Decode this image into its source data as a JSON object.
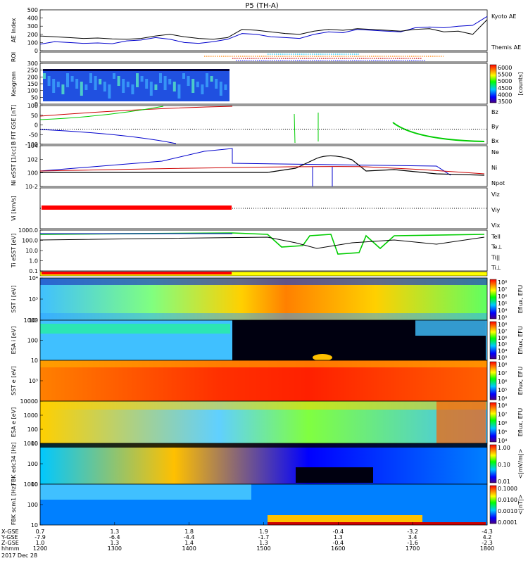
{
  "chart_data": {
    "type": "line",
    "title": "P5 (TH-A)",
    "date": "2017 Dec 28",
    "x_axis": {
      "unit": "hhmm",
      "tick_labels": [
        "1200",
        "1300",
        "1400",
        "1500",
        "1600",
        "1700",
        "1800"
      ],
      "ephemeris_rows": [
        {
          "label": "X-GSE",
          "values": [
            "0.7",
            "1.3",
            "1.8",
            "1.9",
            "-0.4",
            "-3.2",
            "-4.3"
          ]
        },
        {
          "label": "Y-GSE",
          "values": [
            "-7.9",
            "-6.4",
            "-4.4",
            "-1.7",
            "1.3",
            "3.4",
            "4.2"
          ]
        },
        {
          "label": "Z-GSE",
          "values": [
            "1.0",
            "1.3",
            "1.4",
            "1.3",
            "-0.4",
            "-1.6",
            "-2.3"
          ]
        }
      ],
      "hhmm_label": "hhmm"
    },
    "panels": [
      {
        "id": "ae",
        "ylabel": "AE Index",
        "yticks": [
          "0",
          "100",
          "200",
          "300",
          "400",
          "500"
        ],
        "series": [
          {
            "name": "Kyoto AE",
            "color": "#0000cc"
          },
          {
            "name": "Themis AE",
            "color": "#000000"
          }
        ],
        "kyoto_ae": [
          80,
          110,
          100,
          90,
          95,
          85,
          120,
          130,
          160,
          140,
          100,
          90,
          110,
          140,
          210,
          200,
          170,
          160,
          150,
          200,
          230,
          220,
          260,
          250,
          240,
          230,
          280,
          290,
          280,
          300,
          310,
          420
        ],
        "themis_ae": [
          180,
          170,
          160,
          150,
          155,
          145,
          140,
          150,
          180,
          200,
          170,
          150,
          140,
          160,
          260,
          250,
          230,
          210,
          200,
          240,
          260,
          250,
          270,
          260,
          250,
          240,
          260,
          270,
          230,
          240,
          200,
          380
        ]
      },
      {
        "id": "roi",
        "ylabel": "ROI"
      },
      {
        "id": "keogram",
        "ylabel": "Keogram",
        "yticks": [
          "0",
          "50",
          "100",
          "150",
          "200",
          "250",
          "300"
        ],
        "colorbar": {
          "ticks": [
            "3500",
            "4000",
            "4500",
            "5000",
            "5500",
            "6000"
          ],
          "label": "[counts]"
        }
      },
      {
        "id": "bfit",
        "ylabel": "B FIT GSE [nT]",
        "yticks": [
          "-100",
          "-50",
          "0",
          "50",
          "100"
        ],
        "series": [
          {
            "name": "Bz",
            "color": "#cc0000"
          },
          {
            "name": "By",
            "color": "#00cc00"
          },
          {
            "name": "Bx",
            "color": "#0000cc"
          }
        ]
      },
      {
        "id": "ni",
        "ylabel": "Ni eSST [1/cc]",
        "yticks": [
          "10-2",
          "100",
          "102",
          "104"
        ],
        "series": [
          {
            "name": "Ne",
            "color": "#cc0000"
          },
          {
            "name": "Ni",
            "color": "#000000"
          },
          {
            "name": "Npot",
            "color": "#0000cc"
          }
        ]
      },
      {
        "id": "vi",
        "ylabel": "Vi [km/s]",
        "series": [
          {
            "name": "Viz",
            "color": "#cc0000"
          },
          {
            "name": "Viy",
            "color": "#00cc00"
          },
          {
            "name": "Vix",
            "color": "#0000cc"
          }
        ]
      },
      {
        "id": "ti",
        "ylabel": "Ti eSST [eV]",
        "yticks": [
          "0.1",
          "1.0",
          "10.0",
          "100.0",
          "1000.0"
        ],
        "series": [
          {
            "name": "Tell",
            "color": "#000000"
          },
          {
            "name": "Te⊥",
            "color": "#cc0000"
          },
          {
            "name": "Ti||",
            "color": "#00cc00"
          },
          {
            "name": "Ti⊥",
            "color": "#0000cc"
          }
        ]
      },
      {
        "id": "sst_i",
        "ylabel": "SST i [eV]",
        "yticks": [
          "10²",
          "10³",
          "10⁴"
        ],
        "colorbar": {
          "ticks": [
            "10³",
            "10⁴",
            "10⁵",
            "10⁶",
            "10⁷",
            "10⁸"
          ],
          "label": "Eflux, EFU"
        }
      },
      {
        "id": "esa_i",
        "ylabel": "ESA i [eV]",
        "yticks": [
          "10",
          "100",
          "1000"
        ],
        "colorbar": {
          "ticks": [
            "10³",
            "10⁴",
            "10⁵",
            "10⁶",
            "10⁷",
            "10⁸"
          ],
          "label": "Eflux, EFU"
        }
      },
      {
        "id": "sst_e",
        "ylabel": "SST e [eV]",
        "yticks": [
          "10³"
        ],
        "colorbar": {
          "ticks": [
            "10⁴",
            "10⁵",
            "10⁶",
            "10⁷",
            "10⁸"
          ],
          "label": "Eflux, EFU"
        }
      },
      {
        "id": "esa_e",
        "ylabel": "ESA e [eV]",
        "yticks": [
          "10",
          "100",
          "1000",
          "10000"
        ],
        "colorbar": {
          "ticks": [
            "10⁴",
            "10⁵",
            "10⁶",
            "10⁷",
            "10⁸"
          ],
          "label": "Eflux, EFU"
        }
      },
      {
        "id": "fbk_e",
        "ylabel": "FBK edc34 [Hz]",
        "yticks": [
          "10",
          "100",
          "1000"
        ],
        "colorbar": {
          "ticks": [
            "0.01",
            "0.10",
            "1.00"
          ],
          "label": "<|mV/m|>"
        }
      },
      {
        "id": "fbk_b",
        "ylabel": "FBK scm1 [Hz]",
        "yticks": [
          "10",
          "100",
          "1000"
        ],
        "colorbar": {
          "ticks": [
            "0.0001",
            "0.0010",
            "0.0100",
            "0.1000"
          ],
          "label": "<|nT|>"
        }
      }
    ]
  }
}
